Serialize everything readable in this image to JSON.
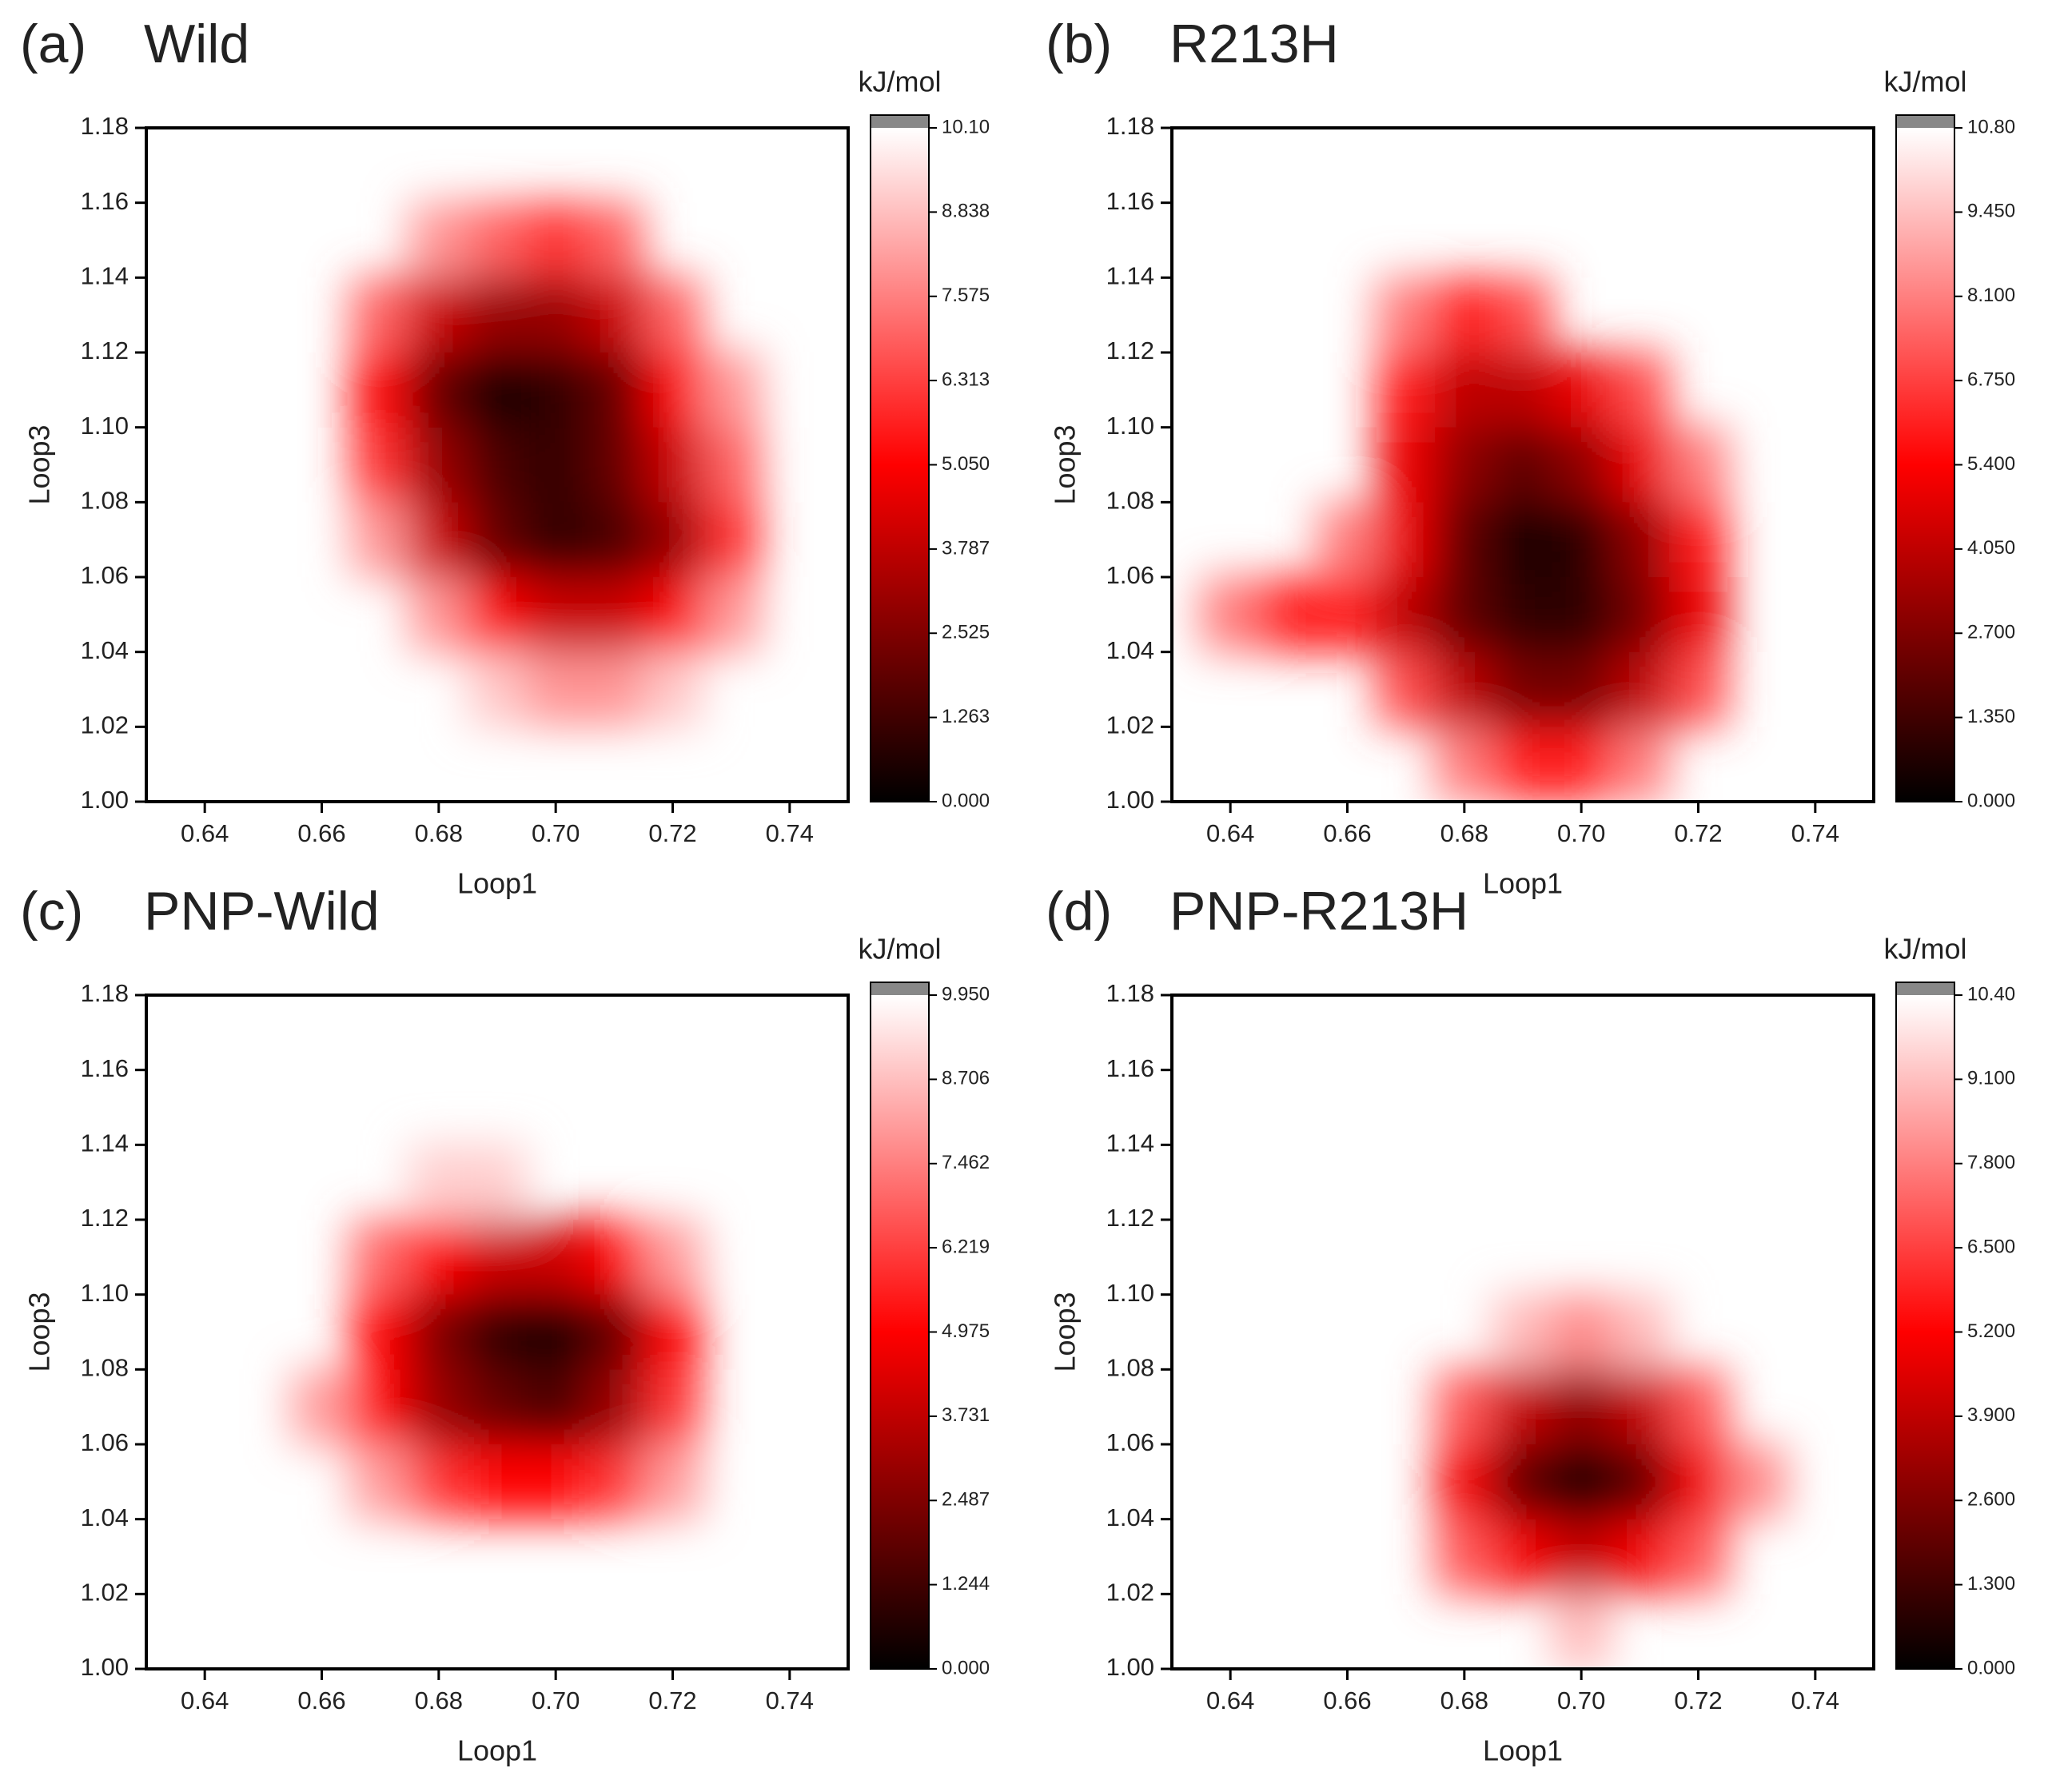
{
  "chart_data": [
    {
      "type": "heatmap",
      "label": "(a)",
      "title": "Wild",
      "xlabel": "Loop1",
      "ylabel": "Loop3",
      "colorbar_label": "kJ/mol",
      "x": [
        0.64,
        0.65,
        0.66,
        0.67,
        0.68,
        0.69,
        0.7,
        0.71,
        0.72,
        0.73,
        0.74
      ],
      "y": [
        1.01,
        1.03,
        1.05,
        1.07,
        1.09,
        1.11,
        1.13,
        1.15,
        1.17
      ],
      "z": [
        [
          null,
          null,
          null,
          null,
          null,
          null,
          null,
          null,
          null,
          null,
          null
        ],
        [
          null,
          null,
          null,
          null,
          null,
          9,
          8,
          8,
          9,
          null,
          null
        ],
        [
          null,
          null,
          null,
          null,
          8,
          5,
          4,
          4,
          5,
          8,
          null
        ],
        [
          null,
          null,
          null,
          8,
          4,
          2,
          1,
          1.5,
          3,
          6,
          null
        ],
        [
          null,
          null,
          null,
          6,
          3,
          1.5,
          1,
          2,
          4,
          7,
          null
        ],
        [
          null,
          null,
          null,
          5,
          2,
          0.5,
          1,
          2,
          5,
          8,
          null
        ],
        [
          null,
          null,
          null,
          7,
          4,
          3,
          3,
          4,
          7,
          null,
          null
        ],
        [
          null,
          null,
          null,
          null,
          8,
          7,
          6,
          7,
          null,
          null,
          null
        ],
        [
          null,
          null,
          null,
          null,
          null,
          null,
          null,
          null,
          null,
          null,
          null
        ]
      ],
      "xlim": [
        0.63,
        0.75
      ],
      "ylim": [
        1.0,
        1.18
      ],
      "xticks": [
        0.64,
        0.66,
        0.68,
        {
          "value": 0.7,
          "label": "0.70"
        },
        0.72,
        0.74
      ],
      "yticks": [
        {
          "value": 1.0,
          "label": "1.00"
        },
        1.02,
        1.04,
        1.06,
        1.08,
        {
          "value": 1.1,
          "label": "1.10"
        },
        1.12,
        1.14,
        1.16,
        1.18
      ],
      "zlim": [
        0,
        10.1
      ],
      "zticks": [
        {
          "value": 0,
          "label": "0.000"
        },
        1.263,
        2.525,
        3.787,
        {
          "value": 5.05,
          "label": "5.050"
        },
        6.313,
        7.575,
        8.838,
        {
          "value": 10.1,
          "label": "10.10"
        }
      ]
    },
    {
      "type": "heatmap",
      "label": "(b)",
      "title": "R213H",
      "xlabel": "Loop1",
      "ylabel": "Loop3",
      "colorbar_label": "kJ/mol",
      "x": [
        0.64,
        0.65,
        0.66,
        0.67,
        0.68,
        0.69,
        0.7,
        0.71,
        0.72,
        0.73,
        0.74
      ],
      "y": [
        1.01,
        1.03,
        1.05,
        1.07,
        1.09,
        1.11,
        1.13,
        1.15,
        1.17
      ],
      "z": [
        [
          null,
          null,
          null,
          null,
          8,
          6,
          6,
          8,
          null,
          null,
          null
        ],
        [
          null,
          null,
          null,
          7,
          4,
          2.5,
          2.5,
          4,
          7,
          null,
          null
        ],
        [
          8,
          6,
          6,
          4,
          2,
          1,
          1,
          2.5,
          5,
          null,
          null
        ],
        [
          null,
          null,
          8,
          5,
          2,
          0.5,
          1,
          3,
          6,
          null,
          null
        ],
        [
          null,
          null,
          null,
          5,
          3,
          2,
          3,
          5,
          8,
          null,
          null
        ],
        [
          null,
          null,
          null,
          6,
          4,
          4,
          5,
          7,
          null,
          null,
          null
        ],
        [
          null,
          null,
          null,
          8,
          6,
          7,
          null,
          null,
          null,
          null,
          null
        ],
        [
          null,
          null,
          null,
          null,
          null,
          null,
          null,
          null,
          null,
          null,
          null
        ],
        [
          null,
          null,
          null,
          null,
          null,
          null,
          null,
          null,
          null,
          null,
          null
        ]
      ],
      "xlim": [
        0.63,
        0.75
      ],
      "ylim": [
        1.0,
        1.18
      ],
      "xticks": [
        0.64,
        0.66,
        0.68,
        {
          "value": 0.7,
          "label": "0.70"
        },
        0.72,
        0.74
      ],
      "yticks": [
        {
          "value": 1.0,
          "label": "1.00"
        },
        1.02,
        1.04,
        1.06,
        1.08,
        {
          "value": 1.1,
          "label": "1.10"
        },
        1.12,
        1.14,
        1.16,
        1.18
      ],
      "zlim": [
        0,
        10.8
      ],
      "zticks": [
        {
          "value": 0,
          "label": "0.000"
        },
        {
          "value": 1.35,
          "label": "1.350"
        },
        {
          "value": 2.7,
          "label": "2.700"
        },
        {
          "value": 4.05,
          "label": "4.050"
        },
        {
          "value": 5.4,
          "label": "5.400"
        },
        {
          "value": 6.75,
          "label": "6.750"
        },
        {
          "value": 8.1,
          "label": "8.100"
        },
        {
          "value": 9.45,
          "label": "9.450"
        },
        {
          "value": 10.8,
          "label": "10.80"
        }
      ]
    },
    {
      "type": "heatmap",
      "label": "(c)",
      "title": "PNP-Wild",
      "xlabel": "Loop1",
      "ylabel": "Loop3",
      "colorbar_label": "kJ/mol",
      "x": [
        0.64,
        0.65,
        0.66,
        0.67,
        0.68,
        0.69,
        0.7,
        0.71,
        0.72,
        0.73,
        0.74
      ],
      "y": [
        1.01,
        1.03,
        1.05,
        1.07,
        1.09,
        1.11,
        1.13,
        1.15,
        1.17
      ],
      "z": [
        [
          null,
          null,
          null,
          null,
          null,
          null,
          null,
          null,
          null,
          null,
          null
        ],
        [
          null,
          null,
          null,
          null,
          null,
          null,
          null,
          null,
          null,
          null,
          null
        ],
        [
          null,
          null,
          null,
          8,
          6,
          5,
          5,
          6,
          8,
          null,
          null
        ],
        [
          null,
          null,
          8,
          5,
          3,
          2,
          1.5,
          3,
          6,
          null,
          null
        ],
        [
          null,
          null,
          null,
          5,
          2.5,
          1,
          0.5,
          2,
          5,
          null,
          null
        ],
        [
          null,
          null,
          null,
          7,
          5,
          4,
          4,
          5,
          8,
          null,
          null
        ],
        [
          null,
          null,
          null,
          null,
          9,
          9,
          null,
          null,
          null,
          null,
          null
        ],
        [
          null,
          null,
          null,
          null,
          null,
          null,
          null,
          null,
          null,
          null,
          null
        ],
        [
          null,
          null,
          null,
          null,
          null,
          null,
          null,
          null,
          null,
          null,
          null
        ]
      ],
      "xlim": [
        0.63,
        0.75
      ],
      "ylim": [
        1.0,
        1.18
      ],
      "xticks": [
        0.64,
        0.66,
        0.68,
        {
          "value": 0.7,
          "label": "0.70"
        },
        0.72,
        0.74
      ],
      "yticks": [
        {
          "value": 1.0,
          "label": "1.00"
        },
        1.02,
        1.04,
        1.06,
        1.08,
        {
          "value": 1.1,
          "label": "1.10"
        },
        1.12,
        1.14,
        1.16,
        1.18
      ],
      "zlim": [
        0,
        9.95
      ],
      "zticks": [
        {
          "value": 0,
          "label": "0.000"
        },
        1.244,
        2.487,
        3.731,
        4.975,
        6.219,
        7.462,
        8.706,
        {
          "value": 9.95,
          "label": "9.950"
        }
      ]
    },
    {
      "type": "heatmap",
      "label": "(d)",
      "title": "PNP-R213H",
      "xlabel": "Loop1",
      "ylabel": "Loop3",
      "colorbar_label": "kJ/mol",
      "x": [
        0.64,
        0.65,
        0.66,
        0.67,
        0.68,
        0.69,
        0.7,
        0.71,
        0.72,
        0.73,
        0.74
      ],
      "y": [
        1.01,
        1.03,
        1.05,
        1.07,
        1.09,
        1.11,
        1.13,
        1.15,
        1.17
      ],
      "z": [
        [
          null,
          null,
          null,
          null,
          null,
          null,
          9,
          null,
          null,
          null,
          null
        ],
        [
          null,
          null,
          null,
          null,
          7,
          5,
          4,
          5,
          7,
          null,
          null
        ],
        [
          null,
          null,
          null,
          null,
          5,
          2,
          0.5,
          2,
          5,
          8,
          null
        ],
        [
          null,
          null,
          null,
          null,
          7,
          4,
          3,
          4,
          7,
          null,
          null
        ],
        [
          null,
          null,
          null,
          null,
          null,
          9,
          8,
          9,
          null,
          null,
          null
        ],
        [
          null,
          null,
          null,
          null,
          null,
          null,
          null,
          null,
          null,
          null,
          null
        ],
        [
          null,
          null,
          null,
          null,
          null,
          null,
          null,
          null,
          null,
          null,
          null
        ],
        [
          null,
          null,
          null,
          null,
          null,
          null,
          null,
          null,
          null,
          null,
          null
        ],
        [
          null,
          null,
          null,
          null,
          null,
          null,
          null,
          null,
          null,
          null,
          null
        ]
      ],
      "xlim": [
        0.63,
        0.75
      ],
      "ylim": [
        1.0,
        1.18
      ],
      "xticks": [
        0.64,
        0.66,
        0.68,
        {
          "value": 0.7,
          "label": "0.70"
        },
        0.72,
        0.74
      ],
      "yticks": [
        {
          "value": 1.0,
          "label": "1.00"
        },
        1.02,
        1.04,
        1.06,
        1.08,
        {
          "value": 1.1,
          "label": "1.10"
        },
        1.12,
        1.14,
        1.16,
        1.18
      ],
      "zlim": [
        0,
        10.4
      ],
      "zticks": [
        {
          "value": 0,
          "label": "0.000"
        },
        {
          "value": 1.3,
          "label": "1.300"
        },
        {
          "value": 2.6,
          "label": "2.600"
        },
        {
          "value": 3.9,
          "label": "3.900"
        },
        {
          "value": 5.2,
          "label": "5.200"
        },
        {
          "value": 6.5,
          "label": "6.500"
        },
        {
          "value": 7.8,
          "label": "7.800"
        },
        {
          "value": 9.1,
          "label": "9.100"
        },
        {
          "value": 10.4,
          "label": "10.40"
        }
      ]
    }
  ]
}
